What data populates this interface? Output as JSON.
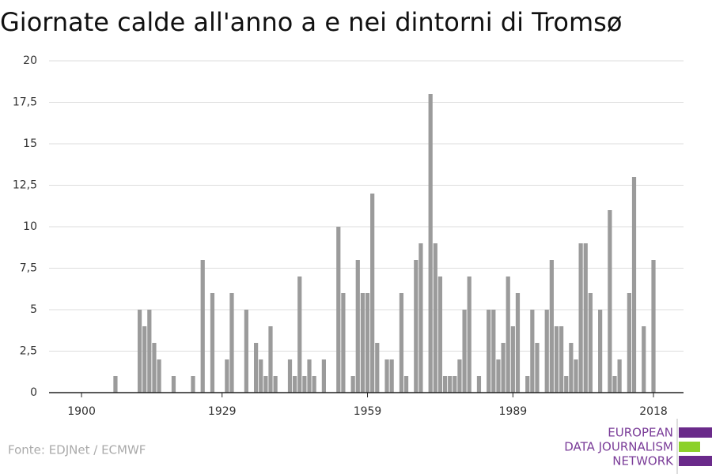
{
  "chart_data": {
    "type": "bar",
    "title": "Giornate calde all'anno a e nei dintorni di Tromsø",
    "source": "Fonte: EDJNet / ECMWF",
    "logo": [
      "EUROPEAN",
      "DATA JOURNALISM",
      "NETWORK"
    ],
    "color": "#9b9b9b",
    "grid": true,
    "x": [
      1900,
      1901,
      1902,
      1903,
      1904,
      1905,
      1906,
      1907,
      1908,
      1909,
      1910,
      1911,
      1912,
      1913,
      1914,
      1915,
      1916,
      1917,
      1918,
      1919,
      1920,
      1921,
      1922,
      1923,
      1924,
      1925,
      1926,
      1927,
      1928,
      1929,
      1930,
      1931,
      1932,
      1933,
      1934,
      1935,
      1936,
      1937,
      1938,
      1939,
      1940,
      1941,
      1942,
      1943,
      1944,
      1945,
      1946,
      1947,
      1948,
      1949,
      1950,
      1951,
      1952,
      1953,
      1954,
      1955,
      1956,
      1957,
      1958,
      1959,
      1960,
      1961,
      1962,
      1963,
      1964,
      1965,
      1966,
      1967,
      1968,
      1969,
      1970,
      1971,
      1972,
      1973,
      1974,
      1975,
      1976,
      1977,
      1978,
      1979,
      1980,
      1981,
      1982,
      1983,
      1984,
      1985,
      1986,
      1987,
      1988,
      1989,
      1990,
      1991,
      1992,
      1993,
      1994,
      1995,
      1996,
      1997,
      1998,
      1999,
      2000,
      2001,
      2002,
      2003,
      2004,
      2005,
      2006,
      2007,
      2008,
      2009,
      2010,
      2011,
      2012,
      2013,
      2014,
      2015,
      2016,
      2017,
      2018
    ],
    "values": [
      0,
      0,
      0,
      0,
      0,
      0,
      0,
      1,
      0,
      0,
      0,
      0,
      5,
      4,
      5,
      3,
      2,
      0,
      0,
      1,
      0,
      0,
      0,
      1,
      0,
      8,
      0,
      6,
      0,
      0,
      2,
      6,
      0,
      0,
      5,
      0,
      3,
      2,
      1,
      4,
      1,
      0,
      0,
      2,
      1,
      7,
      1,
      2,
      1,
      0,
      2,
      0,
      0,
      10,
      6,
      0,
      1,
      8,
      6,
      6,
      12,
      3,
      0,
      2,
      2,
      0,
      6,
      1,
      0,
      8,
      9,
      0,
      18,
      9,
      7,
      1,
      1,
      1,
      2,
      5,
      7,
      0,
      1,
      0,
      5,
      5,
      2,
      3,
      7,
      4,
      6,
      0,
      1,
      5,
      3,
      0,
      5,
      8,
      4,
      4,
      1,
      3,
      2,
      9,
      9,
      6,
      0,
      5,
      0,
      11,
      1,
      2,
      0,
      6,
      13,
      0,
      4,
      0,
      8
    ],
    "xlim": [
      1893.3,
      2024.2
    ],
    "xticks": [
      1900,
      1929,
      1959,
      1989,
      2018
    ],
    "ylim": [
      0,
      20
    ],
    "yticks": [
      0,
      {
        "value": 2.5,
        "label": "2,5"
      },
      5,
      {
        "value": 7.5,
        "label": "7,5"
      },
      10,
      {
        "value": 12.5,
        "label": "12,5"
      },
      15,
      {
        "value": 17.5,
        "label": "17,5"
      },
      20
    ]
  }
}
